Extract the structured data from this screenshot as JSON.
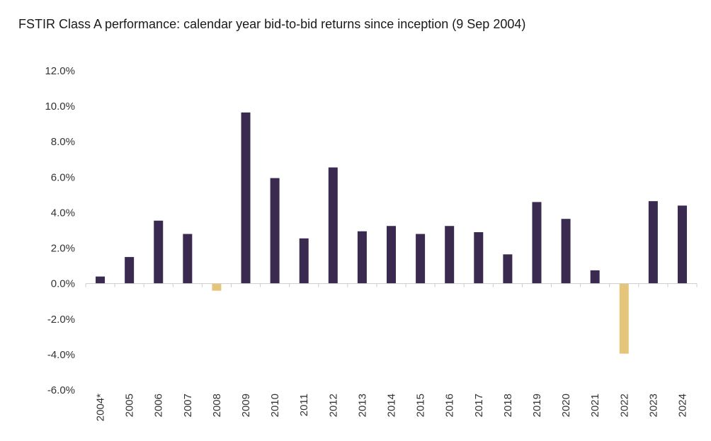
{
  "chart_data": {
    "type": "bar",
    "title": "FSTIR Class A performance: calendar year bid-to-bid returns since inception (9 Sep 2004)",
    "xlabel": "",
    "ylabel": "",
    "ylim": [
      -6.0,
      12.0
    ],
    "yticks": [
      "12.0%",
      "10.0%",
      "8.0%",
      "6.0%",
      "4.0%",
      "2.0%",
      "0.0%",
      "-2.0%",
      "-4.0%",
      "-6.0%"
    ],
    "ytick_values": [
      12,
      10,
      8,
      6,
      4,
      2,
      0,
      -2,
      -4,
      -6
    ],
    "categories": [
      "2004*",
      "2005",
      "2006",
      "2007",
      "2008",
      "2009",
      "2010",
      "2011",
      "2012",
      "2013",
      "2014",
      "2015",
      "2016",
      "2017",
      "2018",
      "2019",
      "2020",
      "2021",
      "2022",
      "2023",
      "2024"
    ],
    "values": [
      0.4,
      1.5,
      3.55,
      2.8,
      -0.4,
      9.65,
      5.95,
      2.55,
      6.55,
      2.95,
      3.25,
      2.8,
      3.25,
      2.9,
      1.65,
      4.6,
      3.65,
      0.75,
      -3.95,
      4.65,
      4.4
    ],
    "grid": false,
    "legend": "none",
    "colors": {
      "positive": "#3a2a50",
      "negative": "#e5c57a",
      "axis": "#cccccc"
    }
  }
}
